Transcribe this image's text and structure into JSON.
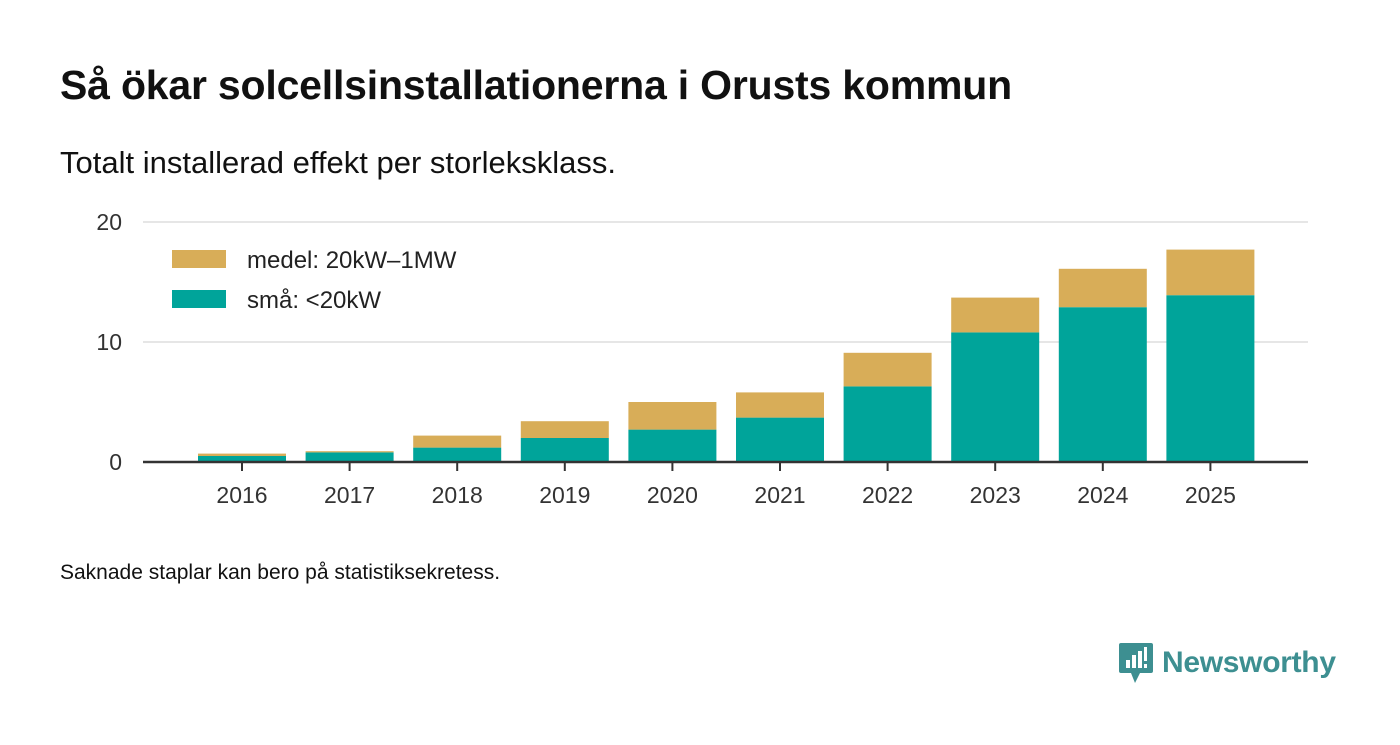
{
  "title": "Så ökar solcellsinstallationerna i Orusts kommun",
  "subtitle": "Totalt installerad effekt per storleksklass.",
  "footnote": "Saknade staplar kan bero på statistiksekretess.",
  "brand": {
    "name": "Newsworthy",
    "color": "#3d8f91",
    "icon": "newsworthy-logo-icon"
  },
  "chart_data": {
    "type": "bar",
    "stacked": true,
    "categories": [
      "2016",
      "2017",
      "2018",
      "2019",
      "2020",
      "2021",
      "2022",
      "2023",
      "2024",
      "2025"
    ],
    "series": [
      {
        "name": "små: <20kW",
        "color": "#00a49a",
        "values": [
          0.5,
          0.8,
          1.2,
          2.0,
          2.7,
          3.7,
          6.3,
          10.8,
          12.9,
          13.9
        ]
      },
      {
        "name": "medel: 20kW–1MW",
        "color": "#d8ad58",
        "values": [
          0.2,
          0.1,
          1.0,
          1.4,
          2.3,
          2.1,
          2.8,
          2.9,
          3.2,
          3.8
        ]
      }
    ],
    "legend_order": [
      "medel: 20kW–1MW",
      "små: <20kW"
    ],
    "legend_position": "top-left",
    "ylim": [
      0,
      20
    ],
    "yticks": [
      0,
      10,
      20
    ],
    "xlabel": "",
    "ylabel": "",
    "grid": true
  }
}
